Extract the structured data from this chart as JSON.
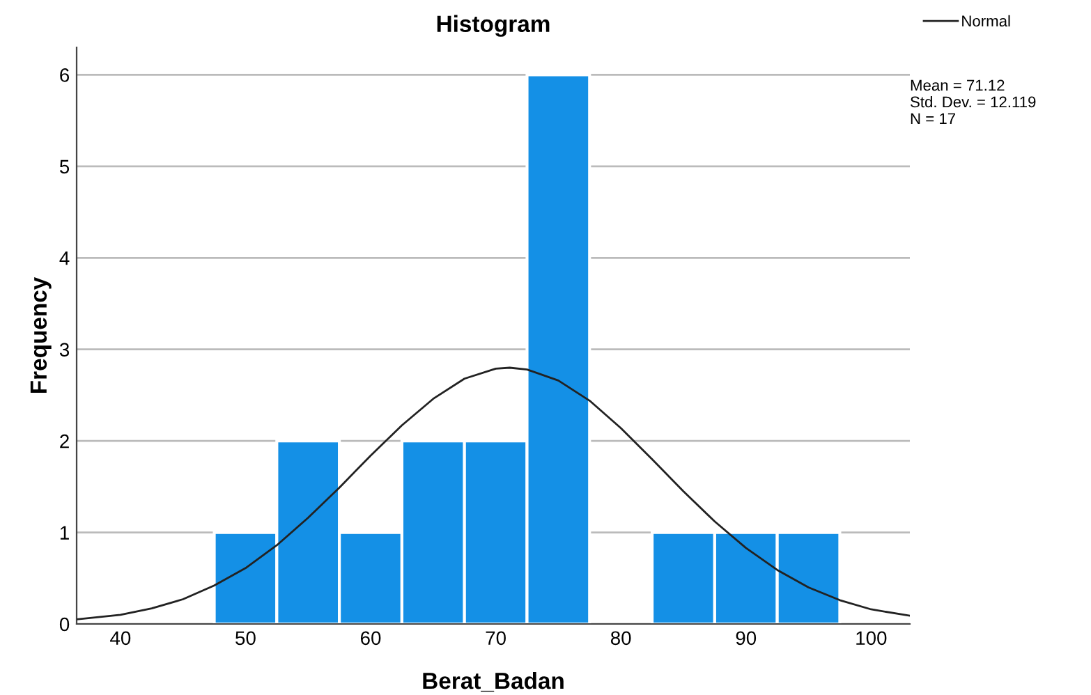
{
  "chart_data": {
    "type": "histogram",
    "title": "Histogram",
    "xlabel": "Berat_Badan",
    "ylabel": "Frequency",
    "bins": [
      47.5,
      52.5,
      57.5,
      62.5,
      67.5,
      72.5,
      77.5,
      82.5,
      87.5,
      92.5,
      97.5
    ],
    "series": [
      {
        "color": "#1490e6",
        "values": [
          1,
          2,
          1,
          2,
          2,
          6,
          0,
          1,
          1,
          1
        ]
      },
      {
        "type": "line",
        "name": "Normal",
        "color": "#222222",
        "x": [
          36.5,
          40,
          42.5,
          45,
          47.5,
          50,
          52.5,
          55,
          57.5,
          60,
          62.5,
          65,
          67.5,
          70,
          71.12,
          72.5,
          75,
          77.5,
          80,
          82.5,
          85,
          87.5,
          90,
          92.5,
          95,
          97.5,
          100,
          103.1
        ],
        "values": [
          0.05,
          0.1,
          0.17,
          0.27,
          0.42,
          0.61,
          0.86,
          1.16,
          1.49,
          1.84,
          2.17,
          2.46,
          2.68,
          2.79,
          2.8,
          2.78,
          2.66,
          2.44,
          2.14,
          1.8,
          1.45,
          1.12,
          0.83,
          0.59,
          0.4,
          0.26,
          0.16,
          0.09
        ]
      }
    ],
    "xlim": [
      36.5,
      103.1
    ],
    "xticks": [
      40,
      50,
      60,
      70,
      80,
      90,
      100
    ],
    "ylim": [
      0,
      6.3
    ],
    "yticks": [
      0,
      1,
      2,
      3,
      4,
      5,
      6
    ],
    "grid": "y",
    "legend": "top right",
    "annotations": [
      "Mean = 71.12\nStd. Dev. = 12.119\nN = 17"
    ]
  }
}
